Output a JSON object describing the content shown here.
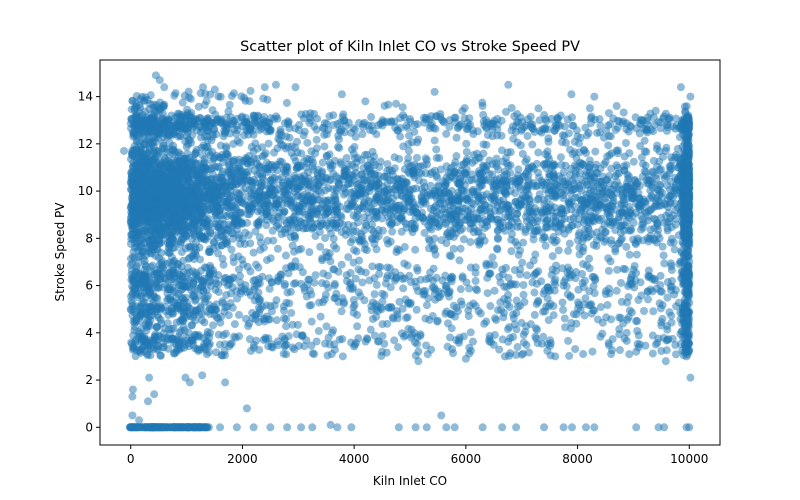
{
  "chart_data": {
    "type": "scatter",
    "title": "Scatter plot of Kiln Inlet CO vs Stroke Speed PV",
    "xlabel": "Kiln Inlet CO",
    "ylabel": "Stroke Speed PV",
    "xlim": [
      -550,
      10550
    ],
    "ylim": [
      -0.75,
      15.55
    ],
    "xticks": [
      0,
      2000,
      4000,
      6000,
      8000,
      10000
    ],
    "xtick_labels": [
      "0",
      "2000",
      "4000",
      "6000",
      "8000",
      "10000"
    ],
    "yticks": [
      0,
      2,
      4,
      6,
      8,
      10,
      12,
      14
    ],
    "ytick_labels": [
      "0",
      "2",
      "4",
      "6",
      "8",
      "10",
      "12",
      "14"
    ],
    "grid": false,
    "legend": "none",
    "marker_color": "#1f77b4",
    "marker_alpha": 0.5,
    "series": [
      {
        "description_of_distribution": null,
        "points": [
          [
            -120,
            11.7
          ],
          [
            30,
            0.5
          ],
          [
            40,
            1.6
          ],
          [
            30,
            1.3
          ],
          [
            150,
            0.3
          ],
          [
            310,
            1.1
          ],
          [
            330,
            2.1
          ],
          [
            420,
            1.4
          ],
          [
            450,
            14.9
          ],
          [
            520,
            14.7
          ],
          [
            600,
            14.4
          ],
          [
            980,
            2.1
          ],
          [
            1060,
            1.9
          ],
          [
            1280,
            2.2
          ],
          [
            1690,
            1.9
          ],
          [
            2080,
            0.8
          ],
          [
            3580,
            0.1
          ],
          [
            5560,
            0.5
          ],
          [
            5440,
            14.2
          ],
          [
            6760,
            14.5
          ],
          [
            7890,
            14.1
          ],
          [
            8300,
            14.0
          ],
          [
            9850,
            14.4
          ],
          [
            10020,
            2.1
          ],
          [
            10020,
            14.0
          ],
          [
            9950,
            3.0
          ],
          [
            9580,
            2.8
          ],
          [
            5150,
            2.8
          ],
          [
            2400,
            14.4
          ],
          [
            2600,
            14.5
          ],
          [
            2950,
            14.4
          ],
          [
            3780,
            14.1
          ],
          [
            4200,
            13.8
          ],
          [
            4750,
            13.7
          ],
          [
            6300,
            13.6
          ],
          [
            7300,
            13.5
          ],
          [
            8700,
            13.6
          ],
          [
            9400,
            13.4
          ],
          [
            6000,
            2.9
          ],
          [
            6700,
            3.0
          ],
          [
            7600,
            3.0
          ],
          [
            8100,
            3.1
          ],
          [
            8600,
            3.1
          ],
          [
            9050,
            3.2
          ],
          [
            4500,
            3.2
          ],
          [
            3600,
            3.1
          ],
          [
            260,
            0.0
          ],
          [
            400,
            0.0
          ],
          [
            600,
            0.0
          ],
          [
            800,
            0.0
          ],
          [
            1000,
            0.0
          ],
          [
            1200,
            0.0
          ],
          [
            1400,
            0.0
          ],
          [
            1600,
            0.0
          ],
          [
            1900,
            0.0
          ],
          [
            2200,
            0.0
          ],
          [
            2500,
            0.0
          ],
          [
            2800,
            0.0
          ],
          [
            3050,
            0.0
          ],
          [
            3250,
            0.0
          ],
          [
            3700,
            0.0
          ],
          [
            3950,
            0.0
          ],
          [
            4800,
            0.0
          ],
          [
            5100,
            0.0
          ],
          [
            5300,
            0.0
          ],
          [
            5650,
            0.0
          ],
          [
            5800,
            0.0
          ],
          [
            6300,
            0.0
          ],
          [
            6650,
            0.0
          ],
          [
            6900,
            0.0
          ],
          [
            7400,
            0.0
          ],
          [
            7750,
            0.0
          ],
          [
            7900,
            0.0
          ],
          [
            8150,
            0.0
          ],
          [
            8300,
            0.0
          ],
          [
            9050,
            0.0
          ],
          [
            9450,
            0.0
          ],
          [
            9550,
            0.0
          ],
          [
            9950,
            0.0
          ],
          [
            10000,
            0.0
          ]
        ]
      }
    ]
  }
}
